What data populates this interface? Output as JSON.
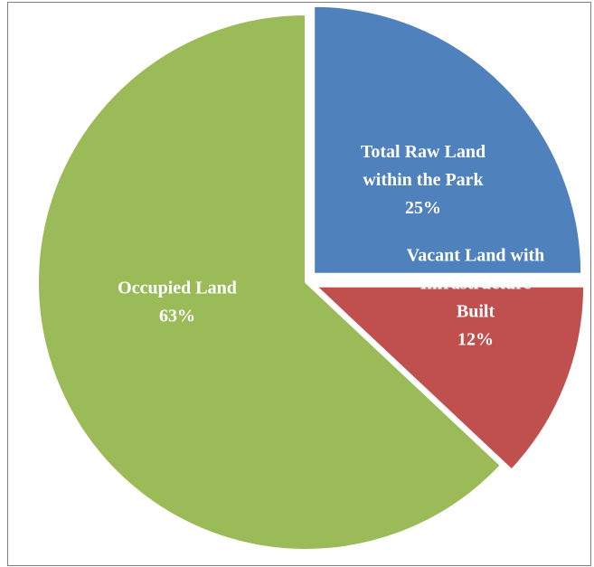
{
  "chart_data": {
    "type": "pie",
    "title": "",
    "slices": [
      {
        "label_lines": [
          "Total Raw Land",
          "within the Park"
        ],
        "value": 25,
        "value_label": "25%",
        "color": "#4f81bd",
        "exploded": true
      },
      {
        "label_lines": [
          "Vacant Land with",
          "Infrastructure",
          "Built"
        ],
        "value": 12,
        "value_label": "12%",
        "color": "#c0504d",
        "exploded": true
      },
      {
        "label_lines": [
          "Occupied Land"
        ],
        "value": 63,
        "value_label": "63%",
        "color": "#9bbb59",
        "exploded": false
      }
    ],
    "start_angle_deg": 0,
    "direction": "clockwise",
    "legend": "none"
  }
}
